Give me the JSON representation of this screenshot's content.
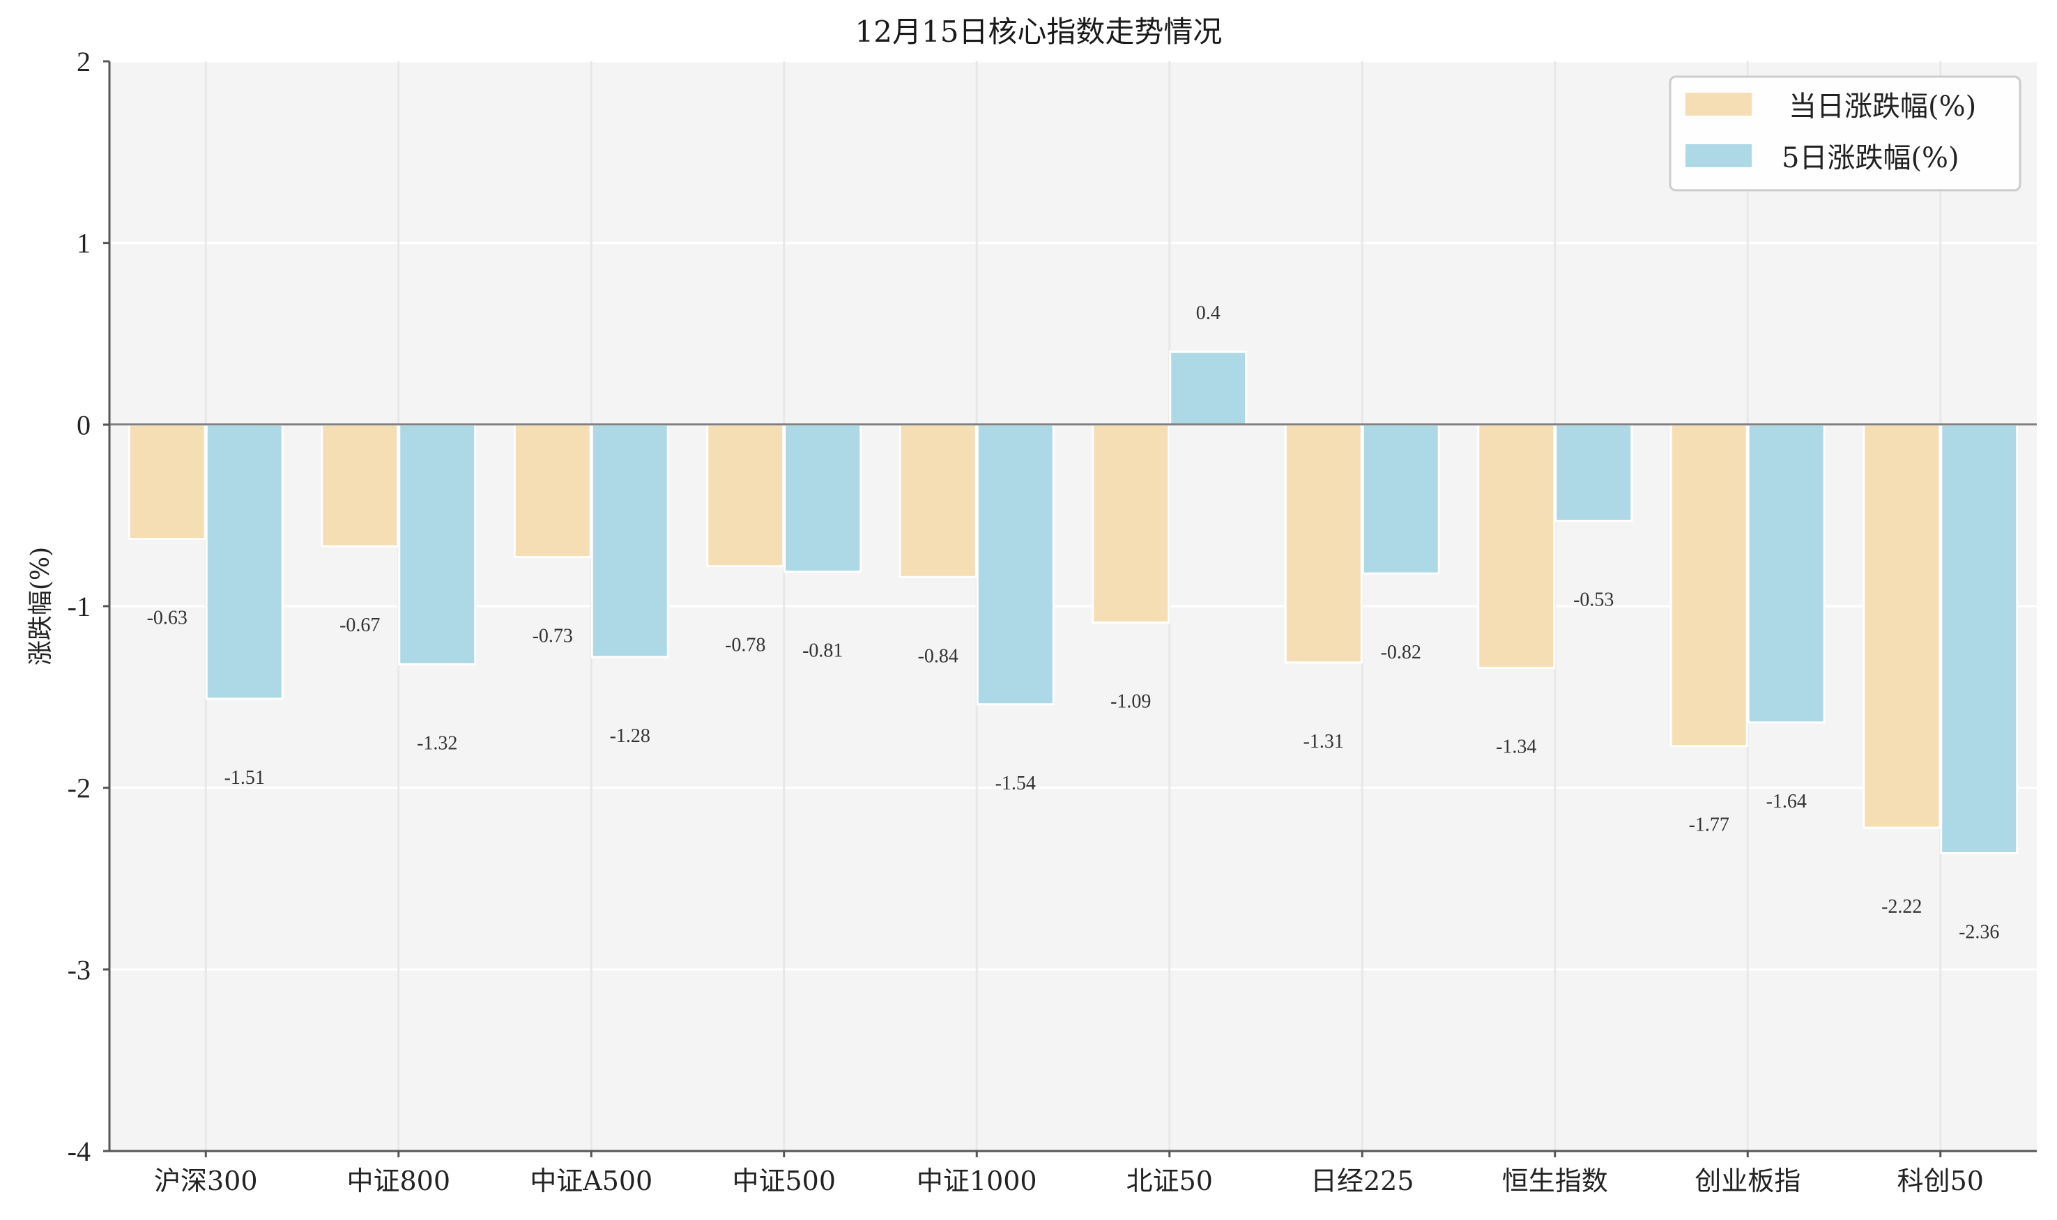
{
  "chart_data": {
    "type": "bar",
    "title": "12月15日核心指数走势情况",
    "xlabel": "",
    "ylabel": "涨跌幅(%)",
    "ylim": [
      -4,
      2
    ],
    "yticks": [
      "2",
      "1",
      "0",
      "-1",
      "-2",
      "-3",
      "-4"
    ],
    "grid": true,
    "legend_position": "top-right",
    "categories": [
      "沪深300",
      "中证800",
      "中证A500",
      "中证500",
      "中证1000",
      "北证50",
      "日经225",
      "恒生指数",
      "创业板指",
      "科创50"
    ],
    "series": [
      {
        "name": "当日涨跌幅(%)",
        "color": "#f5deb3",
        "values": [
          -0.63,
          -0.67,
          -0.73,
          -0.78,
          -0.84,
          -1.09,
          -1.31,
          -1.34,
          -1.77,
          -2.22
        ],
        "labels": [
          "-0.63",
          "-0.67",
          "-0.73",
          "-0.78",
          "-0.84",
          "-1.09",
          "-1.31",
          "-1.34",
          "-1.77",
          "-2.22"
        ]
      },
      {
        "name": "5日涨跌幅(%)",
        "color": "#add8e6",
        "values": [
          -1.51,
          -1.32,
          -1.28,
          -0.81,
          -1.54,
          0.4,
          -0.82,
          -0.53,
          -1.64,
          -2.36
        ],
        "labels": [
          "-1.51",
          "-1.32",
          "-1.28",
          "-0.81",
          "-1.54",
          "0.4",
          "-0.82",
          "-0.53",
          "-1.64",
          "-2.36"
        ]
      }
    ]
  }
}
